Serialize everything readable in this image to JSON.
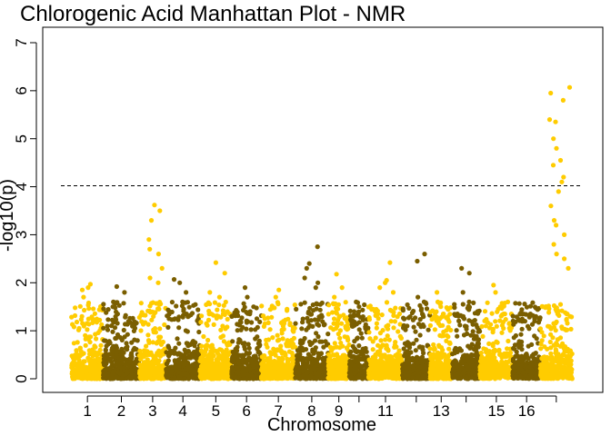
{
  "chart_data": {
    "type": "scatter",
    "title": "Chlorogenic Acid Manhattan Plot - NMR",
    "xlabel": "Chromosome",
    "ylabel": "-log10(p)",
    "ylim": [
      0,
      7
    ],
    "yticks": [
      0,
      1,
      2,
      3,
      4,
      5,
      6,
      7
    ],
    "threshold": 4.02,
    "threshold_style": "dashed",
    "colors": {
      "odd": "#FFCC00",
      "even": "#7A5E00"
    },
    "chromosomes": [
      {
        "name": "1",
        "label": "1",
        "start": 0,
        "end": 300,
        "peaks": [
          1.97,
          1.9,
          1.85,
          1.7
        ]
      },
      {
        "name": "2",
        "label": "2",
        "start": 300,
        "end": 640,
        "peaks": [
          1.92,
          1.8,
          1.6,
          1.5
        ]
      },
      {
        "name": "3",
        "label": "3",
        "start": 640,
        "end": 890,
        "peaks": [
          3.62,
          3.5,
          3.3,
          2.9,
          2.7,
          2.6,
          2.3,
          2.1,
          2.0
        ]
      },
      {
        "name": "4",
        "label": "4",
        "start": 890,
        "end": 1210,
        "peaks": [
          2.07,
          2.0,
          1.8,
          1.6
        ]
      },
      {
        "name": "5",
        "label": "5",
        "start": 1210,
        "end": 1510,
        "peaks": [
          2.42,
          2.2,
          1.8,
          1.7
        ]
      },
      {
        "name": "6",
        "label": "6",
        "start": 1510,
        "end": 1790,
        "peaks": [
          1.9,
          1.7,
          1.5,
          1.4
        ]
      },
      {
        "name": "7",
        "label": "7",
        "start": 1790,
        "end": 2110,
        "peaks": [
          1.85,
          1.7,
          1.5
        ]
      },
      {
        "name": "8",
        "label": "8",
        "start": 2110,
        "end": 2420,
        "peaks": [
          2.75,
          2.4,
          2.3,
          2.1,
          2.0,
          1.9
        ]
      },
      {
        "name": "9",
        "label": "9",
        "start": 2420,
        "end": 2620,
        "peaks": [
          2.18,
          1.9,
          1.7
        ]
      },
      {
        "name": "10",
        "label": "",
        "start": 2620,
        "end": 2800,
        "peaks": [
          1.6,
          1.5,
          1.4
        ]
      },
      {
        "name": "11",
        "label": "11",
        "start": 2800,
        "end": 3120,
        "peaks": [
          2.42,
          2.05,
          2.0,
          1.9,
          1.8
        ]
      },
      {
        "name": "12",
        "label": "",
        "start": 3120,
        "end": 3380,
        "peaks": [
          2.6,
          2.45,
          1.7,
          1.6
        ]
      },
      {
        "name": "13",
        "label": "13",
        "start": 3380,
        "end": 3590,
        "peaks": [
          1.8,
          1.6,
          1.5
        ]
      },
      {
        "name": "14",
        "label": "",
        "start": 3590,
        "end": 3850,
        "peaks": [
          2.3,
          2.2,
          1.8,
          1.6
        ]
      },
      {
        "name": "15",
        "label": "15",
        "start": 3850,
        "end": 4160,
        "peaks": [
          1.95,
          1.8,
          1.6
        ]
      },
      {
        "name": "16",
        "label": "16",
        "start": 4160,
        "end": 4420,
        "peaks": [
          1.3,
          1.25,
          1.2
        ]
      },
      {
        "name": "17",
        "label": "",
        "start": 4420,
        "end": 4720,
        "peaks": [
          6.07,
          5.95,
          5.8,
          5.4,
          5.35,
          5.0,
          4.8,
          4.55,
          4.45,
          4.2,
          4.1,
          3.9,
          3.6,
          3.3,
          3.2,
          3.0,
          2.8,
          2.6,
          2.5,
          2.3
        ]
      }
    ],
    "xlim": [
      -100,
      4820
    ],
    "grid": false,
    "legend": "none"
  }
}
